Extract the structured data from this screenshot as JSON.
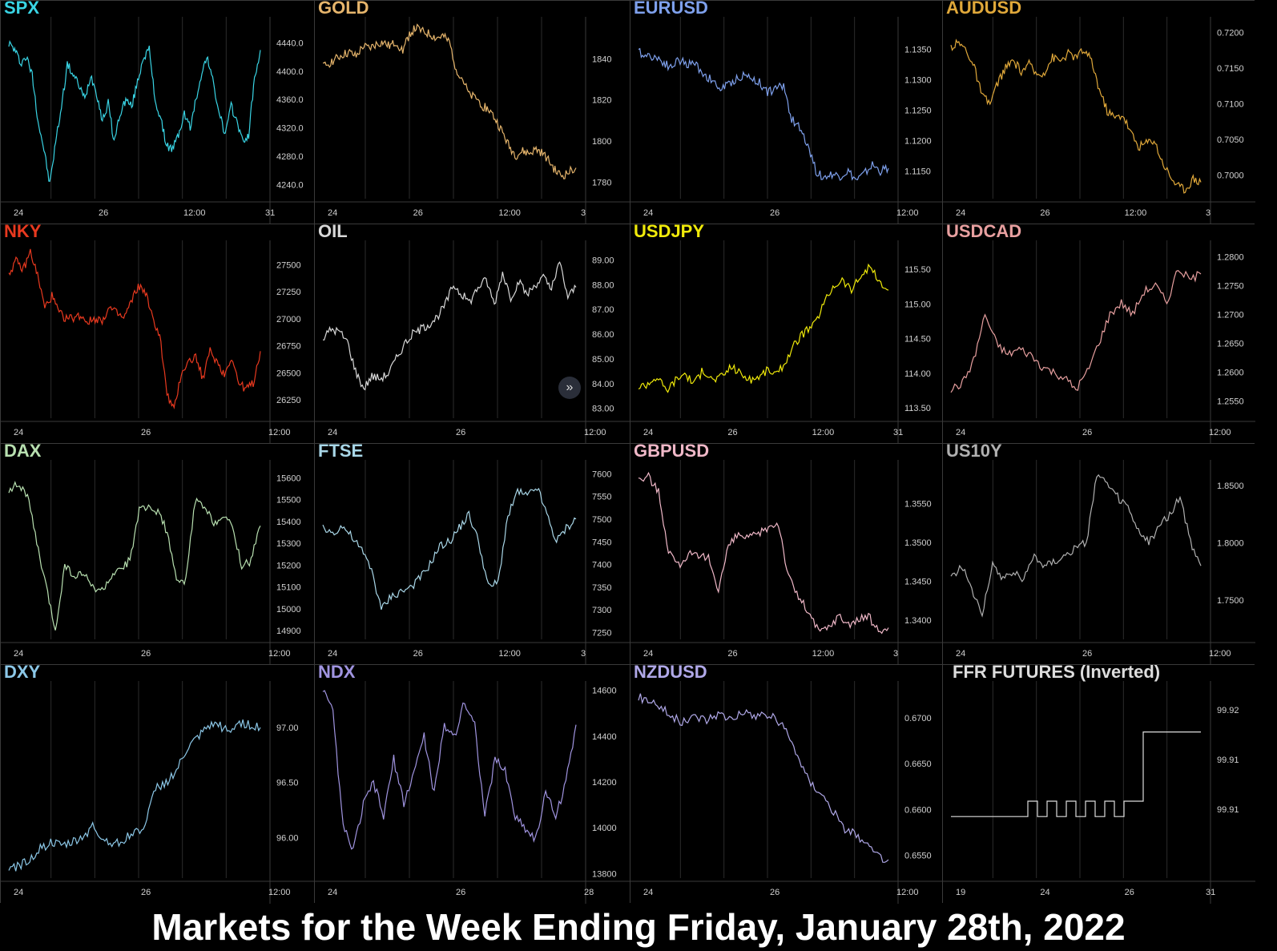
{
  "footer_title": "Markets for the Week Ending Friday, January 28th, 2022",
  "scroll_button_icon": "double-chevron-right-icon",
  "chart_data": [
    {
      "id": "spx",
      "title": "SPX",
      "color": "#39d4e4",
      "type": "line",
      "yticks": [
        "4440.0",
        "4400.0",
        "4360.0",
        "4320.0",
        "4280.0",
        "4240.0"
      ],
      "ylim": [
        4220,
        4470
      ],
      "xticks": [
        "24",
        "26",
        "12:00",
        "31"
      ],
      "values": [
        4440,
        4430,
        4412,
        4420,
        4395,
        4330,
        4290,
        4240,
        4300,
        4350,
        4410,
        4395,
        4380,
        4360,
        4395,
        4370,
        4330,
        4355,
        4300,
        4340,
        4360,
        4350,
        4385,
        4420,
        4430,
        4360,
        4330,
        4295,
        4290,
        4310,
        4340,
        4320,
        4360,
        4400,
        4420,
        4380,
        4340,
        4310,
        4350,
        4330,
        4300,
        4310,
        4390,
        4430
      ]
    },
    {
      "id": "gold",
      "title": "GOLD",
      "color": "#e6b56c",
      "type": "line",
      "yticks": [
        "1840",
        "1820",
        "1800",
        "1780"
      ],
      "ylim": [
        1772,
        1858
      ],
      "xticks": [
        "24",
        "26",
        "12:00",
        "3"
      ],
      "values": [
        1836,
        1838,
        1840,
        1842,
        1843,
        1841,
        1846,
        1845,
        1847,
        1848,
        1846,
        1848,
        1844,
        1852,
        1855,
        1853,
        1852,
        1850,
        1851,
        1848,
        1835,
        1830,
        1822,
        1821,
        1817,
        1815,
        1810,
        1804,
        1797,
        1793,
        1795,
        1794,
        1796,
        1794,
        1790,
        1785,
        1783,
        1785,
        1787
      ]
    },
    {
      "id": "eurusd",
      "title": "EURUSD",
      "color": "#7ea0ec",
      "type": "line",
      "yticks": [
        "1.1350",
        "1.1300",
        "1.1250",
        "1.1200",
        "1.1150"
      ],
      "ylim": [
        1.1105,
        1.1395
      ],
      "xticks": [
        "24",
        "26",
        "12:00"
      ],
      "values": [
        1.1345,
        1.134,
        1.1338,
        1.133,
        1.132,
        1.1333,
        1.1325,
        1.1327,
        1.131,
        1.13,
        1.1285,
        1.129,
        1.13,
        1.1307,
        1.1303,
        1.1295,
        1.128,
        1.1285,
        1.129,
        1.1235,
        1.122,
        1.1195,
        1.115,
        1.114,
        1.1145,
        1.1142,
        1.115,
        1.1135,
        1.1145,
        1.116,
        1.115,
        1.1155
      ]
    },
    {
      "id": "audusd",
      "title": "AUDUSD",
      "color": "#e0a83a",
      "type": "line",
      "yticks": [
        "0.7200",
        "0.7150",
        "0.7100",
        "0.7050",
        "0.7000"
      ],
      "ylim": [
        0.6967,
        0.7215
      ],
      "xticks": [
        "24",
        "26",
        "12:00",
        "3"
      ],
      "values": [
        0.718,
        0.7185,
        0.7175,
        0.715,
        0.711,
        0.71,
        0.713,
        0.715,
        0.716,
        0.7145,
        0.7155,
        0.714,
        0.7145,
        0.7165,
        0.716,
        0.717,
        0.7165,
        0.7175,
        0.716,
        0.712,
        0.709,
        0.708,
        0.7085,
        0.706,
        0.704,
        0.7045,
        0.705,
        0.702,
        0.7,
        0.6985,
        0.698,
        0.6995,
        0.699
      ]
    },
    {
      "id": "nky",
      "title": "NKY",
      "color": "#e8391f",
      "type": "line",
      "yticks": [
        "27500",
        "27250",
        "27000",
        "26750",
        "26500",
        "26250"
      ],
      "ylim": [
        26080,
        27680
      ],
      "xticks": [
        "24",
        "26",
        "12:00"
      ],
      "values": [
        27420,
        27530,
        27450,
        27620,
        27400,
        27100,
        27210,
        27050,
        27000,
        27010,
        27030,
        26970,
        27000,
        26990,
        27100,
        27050,
        27000,
        27150,
        27300,
        27250,
        27000,
        26850,
        26300,
        26150,
        26500,
        26600,
        26650,
        26450,
        26700,
        26600,
        26480,
        26650,
        26400,
        26350,
        26400,
        26700
      ]
    },
    {
      "id": "oil",
      "title": "OIL",
      "color": "#d8d8d8",
      "type": "line",
      "yticks": [
        "89.00",
        "88.00",
        "87.00",
        "86.00",
        "85.00",
        "84.00",
        "83.00"
      ],
      "ylim": [
        82.6,
        89.6
      ],
      "xticks": [
        "24",
        "26",
        "12:00"
      ],
      "values": [
        85.8,
        86.2,
        86.1,
        85.7,
        84.5,
        83.8,
        84.3,
        84.2,
        84.4,
        85.0,
        85.6,
        86.0,
        86.2,
        86.4,
        86.7,
        87.2,
        88.0,
        87.6,
        87.3,
        87.9,
        88.2,
        87.2,
        88.5,
        87.5,
        88.1,
        87.6,
        88.0,
        88.3,
        87.8,
        88.9,
        87.5,
        87.9
      ]
    },
    {
      "id": "usdjpy",
      "title": "USDJPY",
      "color": "#f0ea0a",
      "type": "line",
      "yticks": [
        "115.50",
        "115.00",
        "114.50",
        "114.00",
        "113.50"
      ],
      "ylim": [
        113.35,
        115.85
      ],
      "xticks": [
        "24",
        "26",
        "12:00",
        "31"
      ],
      "values": [
        113.8,
        113.85,
        113.95,
        113.75,
        113.9,
        114.0,
        113.85,
        114.05,
        113.9,
        113.95,
        114.1,
        114.0,
        113.9,
        113.95,
        114.05,
        113.98,
        114.2,
        114.45,
        114.6,
        114.7,
        115.0,
        115.25,
        115.35,
        115.2,
        115.4,
        115.55,
        115.3,
        115.2
      ]
    },
    {
      "id": "usdcad",
      "title": "USDCAD",
      "color": "#e8a0a0",
      "type": "line",
      "yticks": [
        "1.2800",
        "1.2750",
        "1.2700",
        "1.2650",
        "1.2600",
        "1.2550"
      ],
      "ylim": [
        1.252,
        1.282
      ],
      "xticks": [
        "24",
        "26",
        "12:00"
      ],
      "values": [
        1.257,
        1.258,
        1.262,
        1.27,
        1.265,
        1.263,
        1.264,
        1.263,
        1.261,
        1.26,
        1.259,
        1.257,
        1.26,
        1.265,
        1.27,
        1.272,
        1.27,
        1.274,
        1.275,
        1.272,
        1.278,
        1.276,
        1.277
      ]
    },
    {
      "id": "dax",
      "title": "DAX",
      "color": "#b8e0b0",
      "type": "line",
      "yticks": [
        "15600",
        "15500",
        "15400",
        "15300",
        "15200",
        "15100",
        "15000",
        "14900"
      ],
      "ylim": [
        14860,
        15660
      ],
      "xticks": [
        "24",
        "26",
        "12:00"
      ],
      "values": [
        15550,
        15570,
        15520,
        15300,
        15100,
        14900,
        15200,
        15150,
        15160,
        15100,
        15080,
        15150,
        15170,
        15230,
        15450,
        15460,
        15450,
        15350,
        15120,
        15130,
        15500,
        15460,
        15400,
        15420,
        15380,
        15200,
        15220,
        15380
      ]
    },
    {
      "id": "ftse",
      "title": "FTSE",
      "color": "#a9d7e8",
      "type": "line",
      "yticks": [
        "7600",
        "7550",
        "7500",
        "7450",
        "7400",
        "7350",
        "7300",
        "7250"
      ],
      "ylim": [
        7235,
        7620
      ],
      "xticks": [
        "24",
        "26",
        "12:00",
        "3"
      ],
      "values": [
        7480,
        7470,
        7485,
        7460,
        7430,
        7390,
        7300,
        7330,
        7340,
        7350,
        7370,
        7400,
        7440,
        7450,
        7480,
        7510,
        7450,
        7350,
        7360,
        7510,
        7560,
        7550,
        7570,
        7510,
        7450,
        7480,
        7500
      ]
    },
    {
      "id": "gbpusd",
      "title": "GBPUSD",
      "color": "#f0b8c8",
      "type": "line",
      "yticks": [
        "1.3550",
        "1.3500",
        "1.3450",
        "1.3400"
      ],
      "ylim": [
        1.3375,
        1.36
      ],
      "xticks": [
        "24",
        "26",
        "12:00",
        "3"
      ],
      "values": [
        1.358,
        1.3585,
        1.3565,
        1.349,
        1.347,
        1.3485,
        1.348,
        1.348,
        1.344,
        1.3495,
        1.351,
        1.3505,
        1.351,
        1.352,
        1.3525,
        1.3455,
        1.343,
        1.341,
        1.3385,
        1.339,
        1.3405,
        1.3395,
        1.34,
        1.3405,
        1.3385,
        1.339
      ]
    },
    {
      "id": "us10y",
      "title": "US10Y",
      "color": "#b0b0b0",
      "type": "line",
      "yticks": [
        "1.8500",
        "1.8000",
        "1.7500"
      ],
      "ylim": [
        1.716,
        1.868
      ],
      "xticks": [
        "24",
        "26",
        "12:00"
      ],
      "values": [
        1.77,
        1.78,
        1.76,
        1.74,
        1.78,
        1.77,
        1.775,
        1.768,
        1.79,
        1.78,
        1.785,
        1.79,
        1.795,
        1.8,
        1.86,
        1.85,
        1.84,
        1.83,
        1.81,
        1.8,
        1.815,
        1.825,
        1.84,
        1.8,
        1.78
      ]
    },
    {
      "id": "dxy",
      "title": "DXY",
      "color": "#8cc8e8",
      "type": "line",
      "yticks": [
        "97.00",
        "96.50",
        "96.00"
      ],
      "ylim": [
        95.63,
        97.38
      ],
      "xticks": [
        "24",
        "26",
        "12:00"
      ],
      "values": [
        95.7,
        95.75,
        95.8,
        95.9,
        95.95,
        95.92,
        95.95,
        96.0,
        96.1,
        95.98,
        95.95,
        95.98,
        96.05,
        96.1,
        96.45,
        96.5,
        96.6,
        96.8,
        96.9,
        97.0,
        97.03,
        96.95,
        97.05,
        97.02,
        97.0
      ]
    },
    {
      "id": "ndx",
      "title": "NDX",
      "color": "#a094e0",
      "type": "line",
      "yticks": [
        "14600",
        "14400",
        "14200",
        "14000",
        "13800"
      ],
      "ylim": [
        13780,
        14620
      ],
      "xticks": [
        "24",
        "26",
        "28"
      ],
      "values": [
        14600,
        14500,
        14000,
        13900,
        14100,
        14200,
        14050,
        14300,
        14100,
        14250,
        14400,
        14150,
        14450,
        14400,
        14550,
        14450,
        14050,
        14300,
        14250,
        14050,
        14000,
        13950,
        14150,
        14050,
        14200,
        14450
      ]
    },
    {
      "id": "nzdusd",
      "title": "NZDUSD",
      "color": "#b0a8e8",
      "type": "line",
      "yticks": [
        "0.6700",
        "0.6650",
        "0.6600",
        "0.6550"
      ],
      "ylim": [
        0.6525,
        0.6735
      ],
      "xticks": [
        "24",
        "26",
        "12:00"
      ],
      "values": [
        0.6722,
        0.672,
        0.6712,
        0.67,
        0.6695,
        0.6702,
        0.6698,
        0.6705,
        0.67,
        0.6705,
        0.6702,
        0.6704,
        0.67,
        0.6685,
        0.666,
        0.663,
        0.662,
        0.66,
        0.658,
        0.6575,
        0.656,
        0.655,
        0.6545
      ]
    },
    {
      "id": "ffr",
      "title": "FFR FUTURES (Inverted)",
      "color": "#dddddd",
      "type": "step",
      "yticks": [
        "99.92",
        "99.91",
        "99.91"
      ],
      "ylim": [
        99.899,
        99.924
      ],
      "xticks": [
        "19",
        "24",
        "26",
        "31"
      ],
      "values": [
        99.907,
        99.907,
        99.907,
        99.907,
        99.907,
        99.907,
        99.907,
        99.907,
        99.909,
        99.907,
        99.909,
        99.907,
        99.909,
        99.907,
        99.909,
        99.907,
        99.909,
        99.907,
        99.909,
        99.909,
        99.918,
        99.918,
        99.918,
        99.918,
        99.918,
        99.918
      ]
    }
  ]
}
